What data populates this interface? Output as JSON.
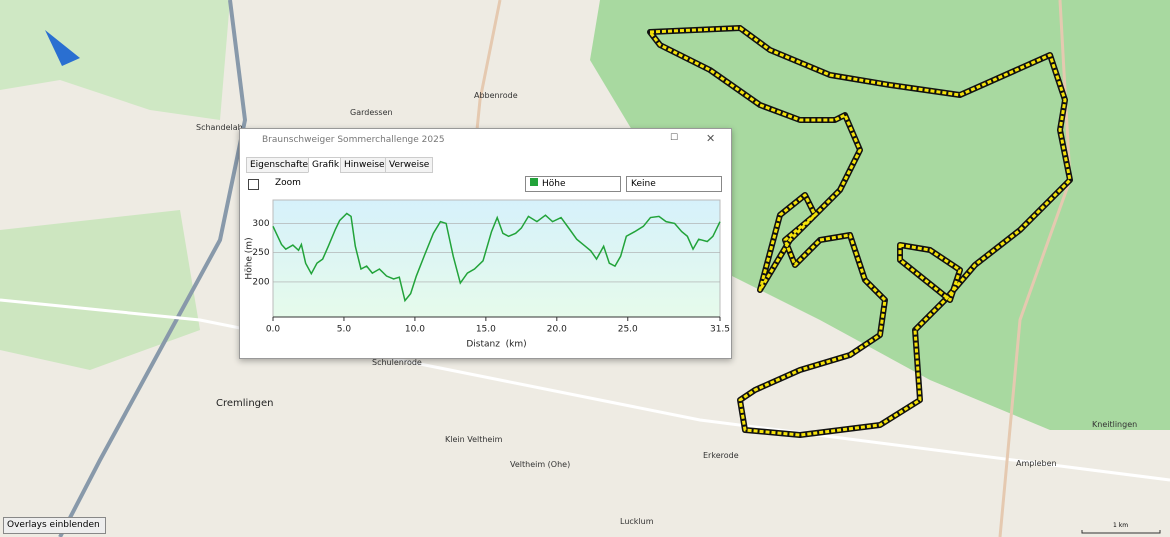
{
  "map": {
    "places": [
      "Schandelah",
      "Gardessen",
      "Abbenrode",
      "Schulenrode",
      "Cremlingen",
      "Klein Veltheim",
      "Veltheim (Ohe)",
      "Erkerode",
      "Lucklum",
      "Ampleben",
      "Kneitlingen"
    ],
    "scale": "1 km",
    "overlays": "Overlays einblenden"
  },
  "window": {
    "title": "Braunschweiger Sommerchallenge 2025",
    "tabs": [
      "Eigenschaften",
      "Grafik",
      "Hinweise",
      "Verweise"
    ],
    "zoom": "Zoom",
    "select1": "Höhe",
    "select2": "Keine"
  },
  "chart_data": {
    "type": "line",
    "color": "#22a33a",
    "xlabel": "Distanz  (km)",
    "ylabel": "Höhe (m)",
    "x": [
      0,
      0.6,
      0.9,
      1.4,
      1.8,
      2.0,
      2.3,
      2.7,
      3.1,
      3.5,
      3.9,
      4.4,
      4.7,
      5.2,
      5.5,
      5.8,
      6.2,
      6.6,
      7.0,
      7.5,
      8.0,
      8.5,
      8.9,
      9.3,
      9.7,
      10.1,
      10.7,
      11.3,
      11.8,
      12.2,
      12.7,
      13.2,
      13.7,
      14.2,
      14.8,
      15.4,
      15.8,
      16.2,
      16.6,
      17.1,
      17.5,
      18.0,
      18.6,
      19.2,
      19.7,
      20.3,
      20.9,
      21.4,
      22.0,
      22.4,
      22.8,
      23.3,
      23.7,
      24.1,
      24.5,
      24.9,
      25.5,
      26.1,
      26.6,
      27.2,
      27.7,
      28.3,
      28.8,
      29.2,
      29.6,
      30.0,
      30.6,
      31.0,
      31.5
    ],
    "values": [
      295,
      264,
      256,
      263,
      254,
      264,
      232,
      214,
      232,
      239,
      261,
      290,
      305,
      317,
      312,
      261,
      222,
      227,
      215,
      222,
      210,
      205,
      208,
      168,
      180,
      210,
      247,
      283,
      303,
      300,
      244,
      198,
      215,
      222,
      236,
      286,
      310,
      283,
      278,
      283,
      292,
      312,
      303,
      314,
      303,
      310,
      290,
      273,
      261,
      253,
      239,
      261,
      232,
      227,
      244,
      278,
      286,
      295,
      310,
      312,
      303,
      300,
      286,
      278,
      256,
      273,
      269,
      278,
      303
    ],
    "xlim": [
      0,
      31.5
    ],
    "ylim": [
      140,
      340
    ],
    "xticks": [
      {
        "value": 0,
        "label": "0.0"
      },
      {
        "value": 5,
        "label": "5.0"
      },
      {
        "value": 10,
        "label": "10.0"
      },
      {
        "value": 15,
        "label": "15.0"
      },
      {
        "value": 20,
        "label": "20.0"
      },
      {
        "value": 25,
        "label": "25.0"
      },
      {
        "value": 31.5,
        "label": "31.5"
      }
    ],
    "yticks": [
      200,
      250,
      300
    ],
    "grid": true
  }
}
